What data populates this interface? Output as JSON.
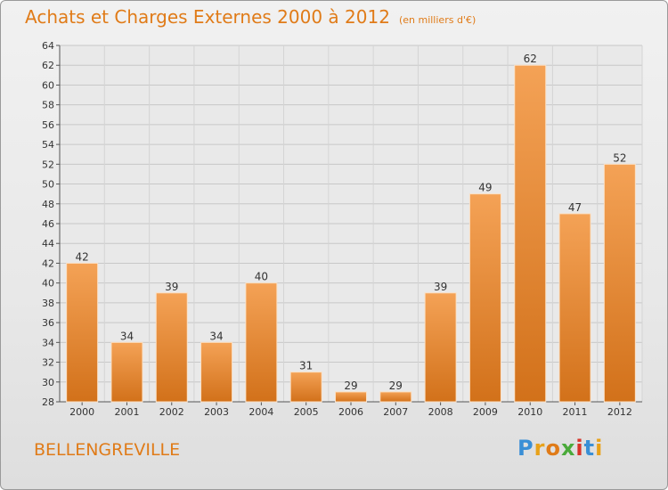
{
  "header": {
    "title": "Achats et Charges Externes 2000 à 2012",
    "subtitle": "(en milliers d'€)"
  },
  "footer": {
    "commune": "BELLENGREVILLE",
    "logo_letters": [
      "P",
      "r",
      "o",
      "x",
      "i",
      "t",
      "i"
    ],
    "logo_colors": [
      "#3a8fd6",
      "#e8a21a",
      "#e07b18",
      "#4aaa3a",
      "#d8342a",
      "#3a8fd6",
      "#e8a21a"
    ]
  },
  "chart_data": {
    "type": "bar",
    "categories": [
      "2000",
      "2001",
      "2002",
      "2003",
      "2004",
      "2005",
      "2006",
      "2007",
      "2008",
      "2009",
      "2010",
      "2011",
      "2012"
    ],
    "values": [
      42,
      34,
      39,
      34,
      40,
      31,
      29,
      29,
      39,
      49,
      62,
      47,
      52
    ],
    "ylim": [
      28,
      64
    ],
    "yticks": [
      "28",
      "30",
      "32",
      "34",
      "36",
      "38",
      "40",
      "42",
      "44",
      "46",
      "48",
      "50",
      "52",
      "54",
      "56",
      "58",
      "60",
      "62",
      "64"
    ],
    "grid": true,
    "bar_color_top": "#f4a256",
    "bar_color_bottom": "#d2711a"
  }
}
